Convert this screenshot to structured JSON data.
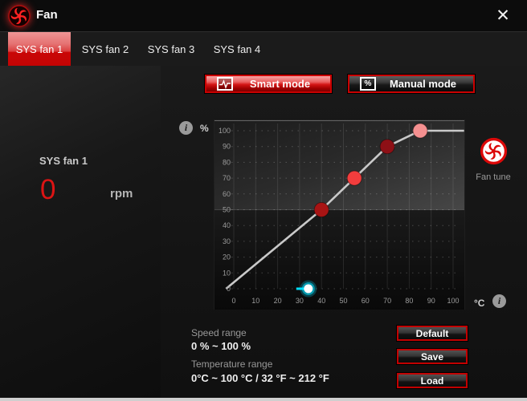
{
  "window": {
    "title": "Fan"
  },
  "icons": {
    "close_glyph": "✕",
    "info_glyph": "i",
    "manual_pct_glyph": "%"
  },
  "tabs": [
    {
      "label": "SYS fan 1",
      "active": true
    },
    {
      "label": "SYS fan 2",
      "active": false
    },
    {
      "label": "SYS fan 3",
      "active": false
    },
    {
      "label": "SYS fan 4",
      "active": false
    }
  ],
  "left_panel": {
    "fan_name": "SYS fan 1",
    "rpm_value": "0",
    "rpm_unit": "rpm"
  },
  "mode_buttons": {
    "smart_label": "Smart mode",
    "manual_label": "Manual mode"
  },
  "fan_tune": {
    "label": "Fan tune"
  },
  "ranges": {
    "speed_label": "Speed range",
    "speed_value": "0 % ~ 100 %",
    "temp_label": "Temperature range",
    "temp_value": "0°C ~ 100 °C / 32 °F ~ 212 °F"
  },
  "action_buttons": {
    "default_label": "Default",
    "save_label": "Save",
    "load_label": "Load"
  },
  "colors": {
    "accent_red": "#c40404",
    "curve_line": "#c9c9c9",
    "tick_text": "#9c9c9c",
    "current_temp_cyan": "#00e0ff"
  },
  "chart_data": {
    "type": "line",
    "title": "Smart mode fan curve: fan speed (%) vs temperature (°C)",
    "xlabel": "°C",
    "ylabel": "%",
    "xlim": [
      0,
      100
    ],
    "ylim": [
      0,
      100
    ],
    "x_ticks": [
      0,
      10,
      20,
      30,
      40,
      50,
      60,
      70,
      80,
      90,
      100
    ],
    "y_ticks": [
      0,
      10,
      20,
      30,
      40,
      50,
      60,
      70,
      80,
      90,
      100
    ],
    "grid": true,
    "curve_points": [
      {
        "temp_c": 40,
        "speed_pct": 50,
        "color": "#a81414"
      },
      {
        "temp_c": 55,
        "speed_pct": 70,
        "color": "#f23d3d"
      },
      {
        "temp_c": 70,
        "speed_pct": 90,
        "color": "#8d1016"
      },
      {
        "temp_c": 85,
        "speed_pct": 100,
        "color": "#f59090"
      }
    ],
    "curve_start": {
      "temp_c": -3.5,
      "speed_pct": 0
    },
    "curve_end": {
      "temp_c": 105,
      "speed_pct": 100
    },
    "current_temp_marker": {
      "temp_c": 34,
      "speed_pct": 0,
      "tail_from_temp_c": 28.5
    },
    "highlight_band_bottom_pct": 50
  }
}
